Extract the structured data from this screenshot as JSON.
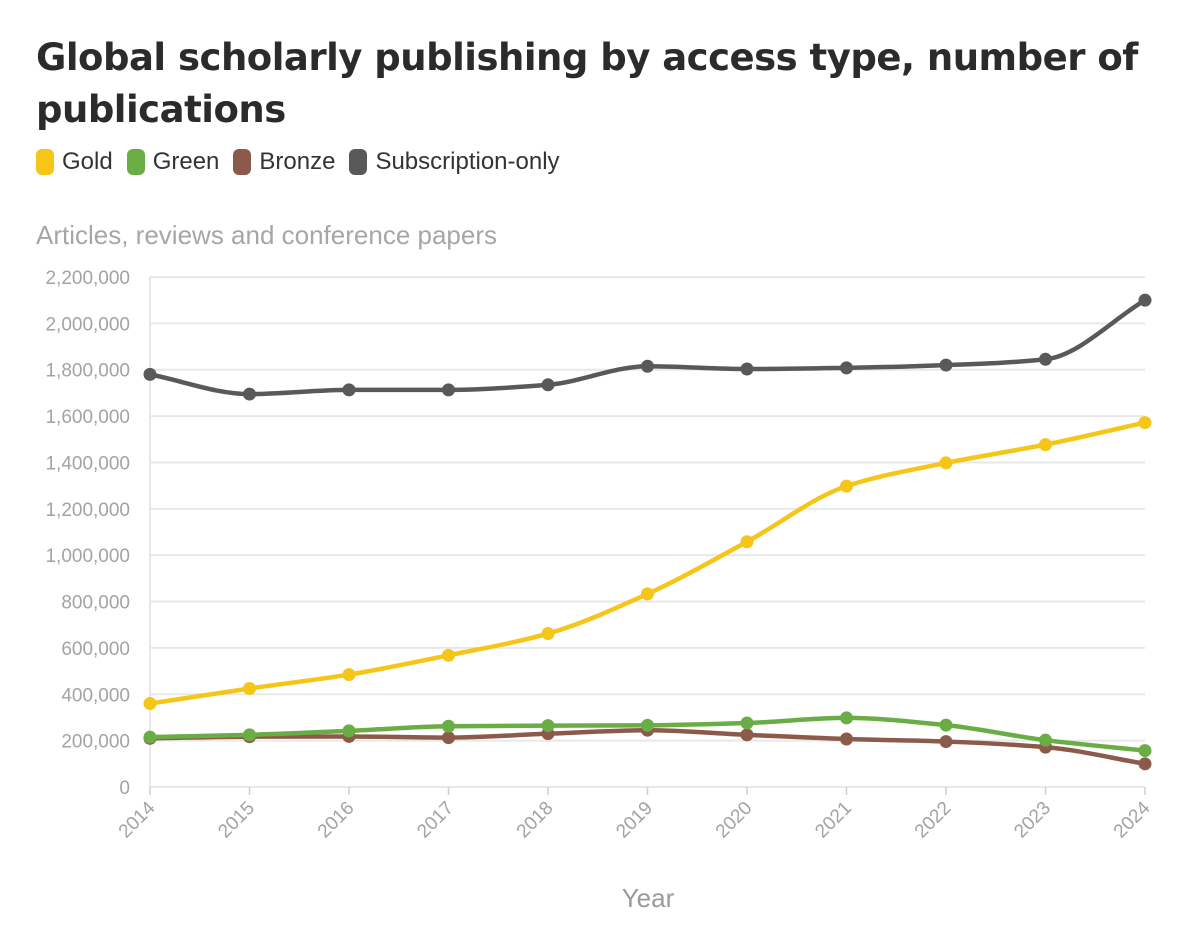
{
  "chart_data": {
    "type": "line",
    "title": "Global scholarly publishing by access type, number of publications",
    "subtitle": "Articles, reviews and conference papers",
    "xlabel": "Year",
    "ylabel": "",
    "ylim": [
      0,
      2200000
    ],
    "yticks": [
      0,
      200000,
      400000,
      600000,
      800000,
      1000000,
      1200000,
      1400000,
      1600000,
      1800000,
      2000000,
      2200000
    ],
    "ytick_labels": [
      "0",
      "200,000",
      "400,000",
      "600,000",
      "800,000",
      "1,000,000",
      "1,200,000",
      "1,400,000",
      "1,600,000",
      "1,800,000",
      "2,000,000",
      "2,200,000"
    ],
    "x": [
      "2014",
      "2015",
      "2016",
      "2017",
      "2018",
      "2019",
      "2020",
      "2021",
      "2022",
      "2023",
      "2024"
    ],
    "grid": true,
    "legend_position": "top-left",
    "series": [
      {
        "name": "Gold",
        "color": "#f5c518",
        "values": [
          360000,
          425000,
          485000,
          568000,
          662000,
          833000,
          1058000,
          1298000,
          1398000,
          1477000,
          1572000
        ]
      },
      {
        "name": "Green",
        "color": "#6aad45",
        "values": [
          215000,
          225000,
          242000,
          262000,
          265000,
          266000,
          276000,
          298000,
          267000,
          202000,
          157000
        ]
      },
      {
        "name": "Bronze",
        "color": "#8c5a4a",
        "values": [
          210000,
          217000,
          218000,
          213000,
          230000,
          245000,
          225000,
          207000,
          196000,
          172000,
          100000
        ]
      },
      {
        "name": "Subscription-only",
        "color": "#595959",
        "values": [
          1780000,
          1695000,
          1713000,
          1713000,
          1735000,
          1815000,
          1803000,
          1808000,
          1820000,
          1845000,
          2100000
        ]
      }
    ]
  },
  "gridline_color": "#e8e8e8"
}
